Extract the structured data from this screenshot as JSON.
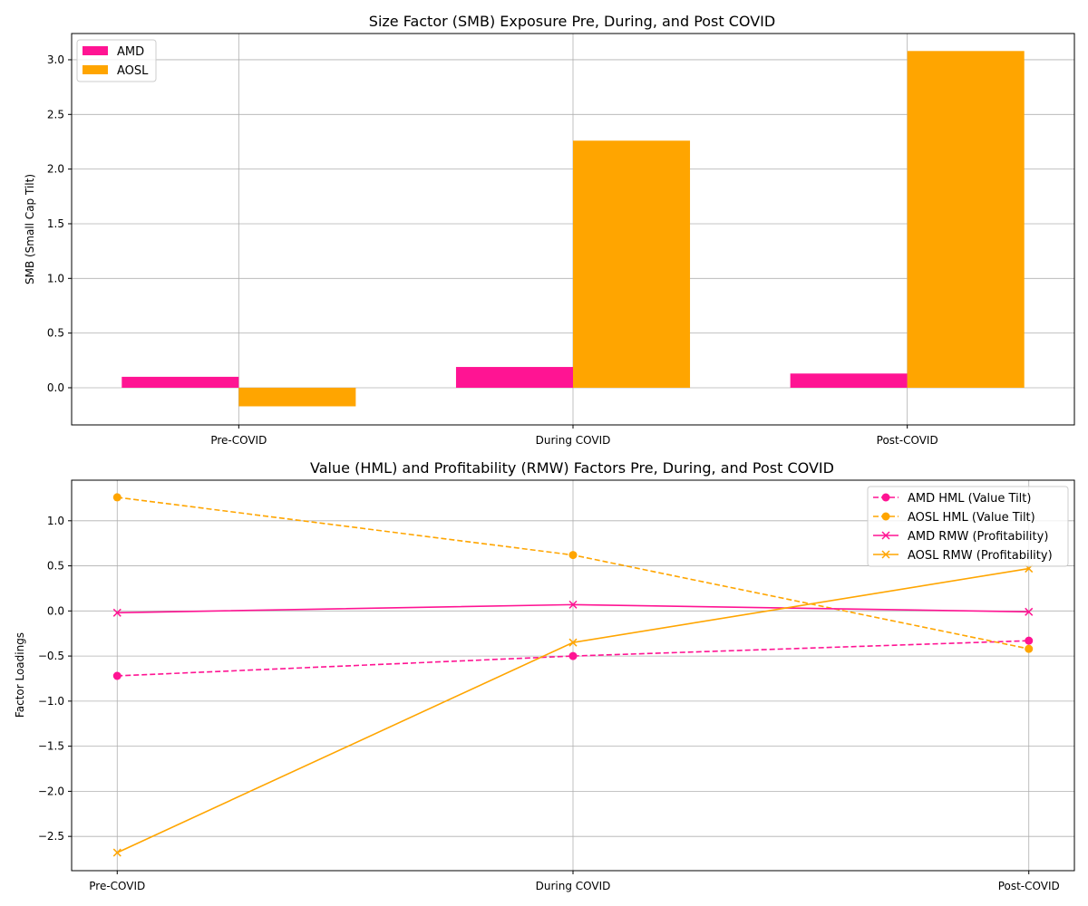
{
  "chart_data": [
    {
      "type": "bar",
      "title": "Size Factor (SMB) Exposure Pre, During, and Post COVID",
      "xlabel": "",
      "ylabel": "SMB (Small Cap Tilt)",
      "categories": [
        "Pre-COVID",
        "During COVID",
        "Post-COVID"
      ],
      "series": [
        {
          "name": "AMD",
          "values": [
            0.1,
            0.19,
            0.13
          ],
          "color": "#ff1493"
        },
        {
          "name": "AOSL",
          "values": [
            -0.17,
            2.26,
            3.08
          ],
          "color": "#ffa500"
        }
      ],
      "ylim": [
        -0.34,
        3.24
      ],
      "yticks": [
        0.0,
        0.5,
        1.0,
        1.5,
        2.0,
        2.5,
        3.0
      ],
      "ytick_labels": [
        "0.0",
        "0.5",
        "1.0",
        "1.5",
        "2.0",
        "2.5",
        "3.0"
      ],
      "grid": true,
      "legend": "upper left"
    },
    {
      "type": "line",
      "title": "Value (HML) and Profitability (RMW) Factors Pre, During, and Post COVID",
      "xlabel": "",
      "ylabel": "Factor Loadings",
      "categories": [
        "Pre-COVID",
        "During COVID",
        "Post-COVID"
      ],
      "series": [
        {
          "name": "AMD HML (Value Tilt)",
          "values": [
            -0.72,
            -0.5,
            -0.33
          ],
          "color": "#ff1493",
          "dash": "dashed",
          "marker": "o"
        },
        {
          "name": "AOSL HML (Value Tilt)",
          "values": [
            1.26,
            0.62,
            -0.42
          ],
          "color": "#ffa500",
          "dash": "dashed",
          "marker": "o"
        },
        {
          "name": "AMD RMW (Profitability)",
          "values": [
            -0.02,
            0.07,
            -0.01
          ],
          "color": "#ff1493",
          "dash": "solid",
          "marker": "x"
        },
        {
          "name": "AOSL RMW (Profitability)",
          "values": [
            -2.68,
            -0.35,
            0.47
          ],
          "color": "#ffa500",
          "dash": "solid",
          "marker": "x"
        }
      ],
      "ylim": [
        -2.88,
        1.45
      ],
      "yticks": [
        -2.5,
        -2.0,
        -1.5,
        -1.0,
        -0.5,
        0.0,
        0.5,
        1.0
      ],
      "ytick_labels": [
        "−2.5",
        "−2.0",
        "−1.5",
        "−1.0",
        "−0.5",
        "0.0",
        "0.5",
        "1.0"
      ],
      "grid": true,
      "legend": "upper right"
    }
  ]
}
